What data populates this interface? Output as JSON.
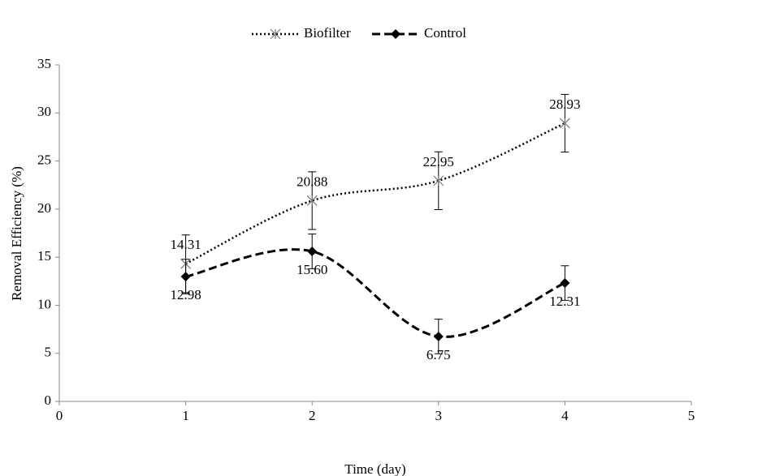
{
  "chart_data": {
    "type": "line",
    "x": [
      1,
      2,
      3,
      4
    ],
    "series": [
      {
        "name": "Biofilter",
        "color": "#000000",
        "dash": "dotted",
        "marker": "asterisk",
        "values": [
          14.31,
          20.88,
          22.95,
          28.93
        ],
        "errors": [
          3,
          3,
          3,
          3
        ],
        "value_labels": [
          "14.31",
          "20.88",
          "22.95",
          "28.93"
        ],
        "label_position": "above"
      },
      {
        "name": "Control",
        "color": "#000000",
        "dash": "dashed",
        "marker": "diamond",
        "values": [
          12.98,
          15.6,
          6.75,
          12.31
        ],
        "errors": [
          1.8,
          1.8,
          1.8,
          1.8
        ],
        "value_labels": [
          "12.98",
          "15.60",
          "6.75",
          "12.31"
        ],
        "label_position": "below"
      }
    ],
    "smooth": true,
    "xlim": [
      0,
      5
    ],
    "xticks": [
      0,
      1,
      2,
      3,
      4,
      5
    ],
    "ylim": [
      0,
      35
    ],
    "yticks": [
      0,
      5,
      10,
      15,
      20,
      25,
      30,
      35
    ],
    "xlabel": "Time (day)",
    "ylabel": "Removal Efficiency (%)",
    "legend": "top",
    "grid": false
  }
}
